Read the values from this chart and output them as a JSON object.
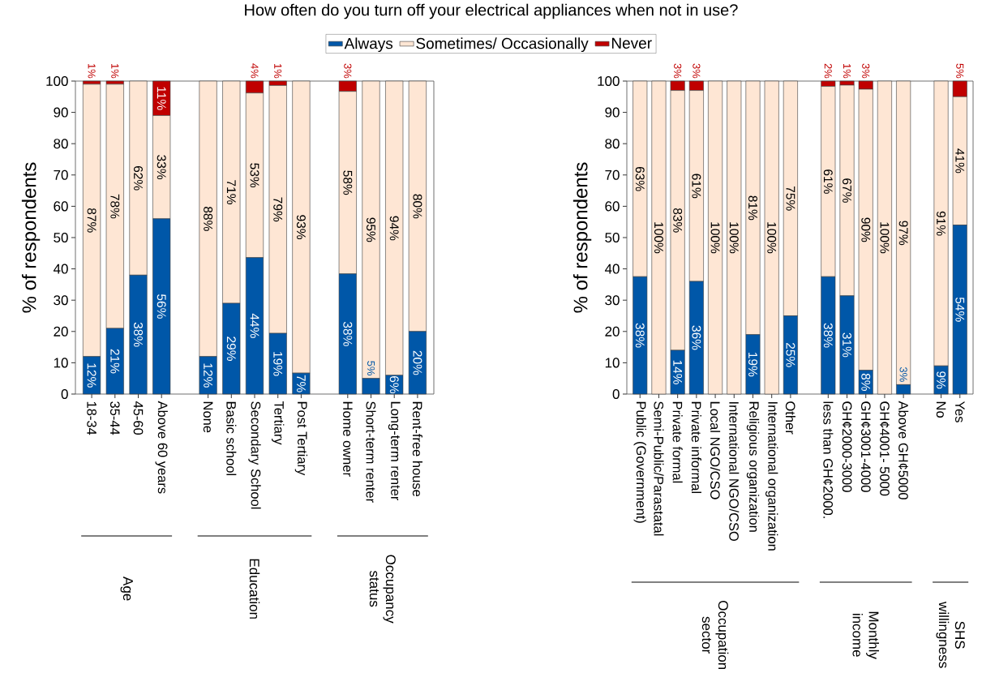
{
  "chart_data": [
    {
      "type": "bar",
      "stacked": true,
      "title": "How often do you turn off your electrical appliances when not in use?",
      "ylabel": "% of respondents",
      "legend": "top",
      "categories": [
        "18-34",
        "35-44",
        "45-60",
        "Above 60 years",
        null,
        "None",
        "Basic school",
        "Secondary School",
        "Tertiary",
        "Post Tertiary",
        null,
        "Home owner",
        "Short-term renter",
        "Long-term renter",
        "Rent-free house"
      ],
      "series": [
        {
          "name": "Always",
          "color": "#0057a8",
          "values": [
            12,
            21,
            38,
            56,
            null,
            12,
            29,
            43.6,
            19.4,
            6.7,
            null,
            38.4,
            5,
            6,
            20
          ],
          "value_labels": [
            "12%",
            "21%",
            "38%",
            "56%",
            null,
            "12%",
            "29%",
            "44%",
            "19%",
            "7%",
            null,
            "38%",
            "5%",
            "6%",
            "20%"
          ]
        },
        {
          "name": "Sometimes/ Occasionally",
          "color": "#fee6d4",
          "values": [
            87,
            78,
            62,
            33,
            null,
            88,
            71,
            52.6,
            79.2,
            93.3,
            null,
            58.3,
            95,
            94,
            80
          ],
          "value_labels": [
            "87%",
            "78%",
            "62%",
            "33%",
            null,
            "88%",
            "71%",
            "53%",
            "79%",
            "93%",
            null,
            "58%",
            "95%",
            "94%",
            "80%"
          ]
        },
        {
          "name": "Never",
          "color": "#c00000",
          "values": [
            1,
            1,
            0,
            11,
            null,
            0,
            0,
            3.8,
            1.4,
            0,
            null,
            3.3,
            0,
            0,
            0
          ],
          "value_labels": [
            "1%",
            "1%",
            null,
            "11%",
            null,
            null,
            null,
            "4%",
            "1%",
            null,
            null,
            "3%",
            null,
            null,
            null
          ]
        }
      ],
      "ylim": [
        0,
        100
      ],
      "yticks": [
        0,
        10,
        20,
        30,
        40,
        50,
        60,
        70,
        80,
        90,
        100
      ],
      "annotations": [
        "Age",
        "Education",
        "Occupancy status"
      ]
    },
    {
      "type": "bar",
      "stacked": true,
      "ylabel": "% of respondents",
      "categories": [
        "Public (Government)",
        "Semi-Public/Parastatal",
        "Private formal",
        "Private informal",
        "Local NGO/CSO",
        "International NGO/CSO",
        "Religious organization",
        "International organization",
        "Other",
        null,
        "less than GH¢2000.",
        "GH¢2000-3000",
        "GH¢3001-4000",
        "GH¢4001- 5000",
        "Above GH¢5000",
        null,
        "No",
        "Yes"
      ],
      "series": [
        {
          "color": "#0057a8",
          "values": [
            37.5,
            0,
            14,
            36,
            0,
            0,
            19,
            0,
            25,
            null,
            37.5,
            31.4,
            7.6,
            0,
            3,
            null,
            9,
            54
          ],
          "value_labels": [
            "38%",
            null,
            "14%",
            "36%",
            null,
            null,
            "19%",
            null,
            "25%",
            null,
            "38%",
            "31%",
            "8%",
            null,
            "3%",
            null,
            "9%",
            "54%"
          ]
        },
        {
          "color": "#fee6d4",
          "values": [
            62.5,
            100,
            83,
            61,
            100,
            100,
            81,
            100,
            75,
            null,
            60.8,
            67.3,
            89.8,
            100,
            97,
            null,
            91,
            41
          ],
          "value_labels": [
            "63%",
            "100%",
            "83%",
            "61%",
            "100%",
            "100%",
            "81%",
            "100%",
            "75%",
            null,
            "61%",
            "67%",
            "90%",
            "100%",
            "97%",
            null,
            "91%",
            "41%"
          ]
        },
        {
          "color": "#c00000",
          "values": [
            0,
            0,
            3,
            3,
            0,
            0,
            0,
            0,
            0,
            null,
            1.7,
            1.3,
            2.6,
            0,
            0,
            null,
            0,
            5
          ],
          "value_labels": [
            null,
            null,
            "3%",
            "3%",
            null,
            null,
            null,
            null,
            null,
            null,
            "2%",
            "1%",
            "3%",
            null,
            null,
            null,
            null,
            "5%"
          ]
        }
      ],
      "ylim": [
        0,
        100
      ],
      "yticks": [
        0,
        10,
        20,
        30,
        40,
        50,
        60,
        70,
        80,
        90,
        100
      ],
      "annotations": [
        "Occupation sector",
        "Monthly income",
        "SHS willingness"
      ]
    }
  ]
}
